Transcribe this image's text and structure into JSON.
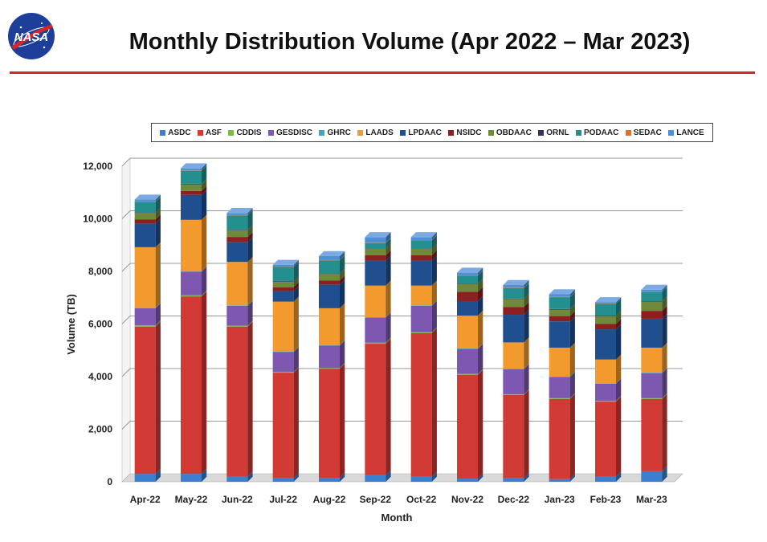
{
  "title": "Monthly Distribution Volume (Apr 2022 – Mar 2023)",
  "logo": {
    "text": "NASA",
    "icon": "nasa-meatball-logo",
    "colors": {
      "blue": "#1d3f9a",
      "red": "#d7262b"
    }
  },
  "accent_rule_color": "#d7262b",
  "chart_data": {
    "type": "bar",
    "stacked": true,
    "style": "3d-stacked-bar",
    "xlabel": "Month",
    "ylabel": "Volume (TB)",
    "ylim": [
      0,
      12000
    ],
    "yticks": [
      "0",
      "2,000",
      "4,000",
      "6,000",
      "8,000",
      "10,000",
      "12,000"
    ],
    "grid": true,
    "legend": "top",
    "categories": [
      "Apr-22",
      "May-22",
      "Jun-22",
      "Jul-22",
      "Aug-22",
      "Sep-22",
      "Oct-22",
      "Nov-22",
      "Dec-22",
      "Jan-23",
      "Feb-23",
      "Mar-23"
    ],
    "series": [
      {
        "name": "ASDC",
        "color": "#3a7fd0",
        "values": [
          300,
          300,
          200,
          150,
          150,
          250,
          200,
          120,
          150,
          100,
          200,
          400
        ]
      },
      {
        "name": "ASF",
        "color": "#d23a36",
        "values": [
          5600,
          6750,
          5700,
          4000,
          4150,
          5000,
          5450,
          3950,
          3150,
          3050,
          2850,
          2750
        ]
      },
      {
        "name": "CDDIS",
        "color": "#7db84a",
        "values": [
          50,
          40,
          40,
          30,
          30,
          40,
          40,
          30,
          30,
          30,
          30,
          30
        ]
      },
      {
        "name": "GESDISC",
        "color": "#7d57b0",
        "values": [
          650,
          900,
          750,
          750,
          850,
          950,
          1000,
          950,
          950,
          800,
          650,
          950
        ]
      },
      {
        "name": "GHRC",
        "color": "#39a8c8",
        "values": [
          20,
          20,
          20,
          20,
          20,
          20,
          20,
          20,
          20,
          20,
          20,
          20
        ]
      },
      {
        "name": "LAADS",
        "color": "#f29a2e",
        "values": [
          2300,
          1950,
          1650,
          1900,
          1400,
          1200,
          750,
          1250,
          1000,
          1100,
          900,
          950
        ]
      },
      {
        "name": "LPDAAC",
        "color": "#1f4f8f",
        "values": [
          900,
          950,
          750,
          400,
          900,
          950,
          950,
          550,
          1050,
          1000,
          1150,
          1100
        ]
      },
      {
        "name": "NSIDC",
        "color": "#8c1f1f",
        "values": [
          150,
          150,
          200,
          150,
          150,
          200,
          200,
          350,
          300,
          200,
          200,
          300
        ]
      },
      {
        "name": "OBDAAC",
        "color": "#6f8a3a",
        "values": [
          250,
          250,
          250,
          200,
          250,
          250,
          250,
          300,
          300,
          250,
          300,
          350
        ]
      },
      {
        "name": "ORNL",
        "color": "#3c2d5a",
        "values": [
          20,
          20,
          20,
          20,
          20,
          20,
          20,
          20,
          20,
          20,
          20,
          20
        ]
      },
      {
        "name": "PODAAC",
        "color": "#248f8f",
        "values": [
          400,
          500,
          550,
          550,
          500,
          200,
          300,
          300,
          400,
          450,
          450,
          350
        ]
      },
      {
        "name": "SEDAC",
        "color": "#e56f20",
        "values": [
          10,
          10,
          10,
          10,
          10,
          10,
          10,
          10,
          10,
          10,
          10,
          10
        ]
      },
      {
        "name": "LANCE",
        "color": "#4f8ed8",
        "values": [
          80,
          80,
          80,
          70,
          150,
          210,
          110,
          100,
          100,
          100,
          50,
          70
        ]
      }
    ]
  }
}
